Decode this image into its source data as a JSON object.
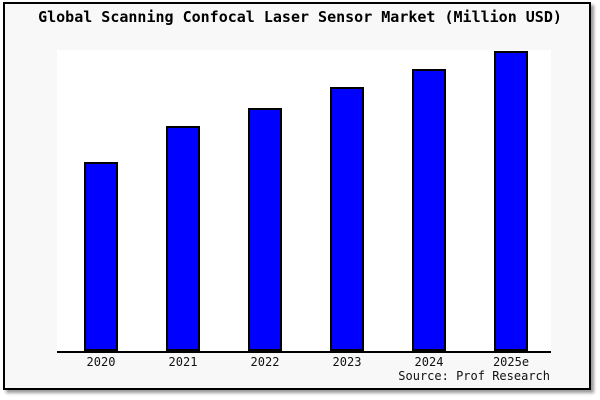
{
  "title": "Global Scanning Confocal Laser Sensor Market (Million USD)",
  "source": "Source: Prof Research",
  "colors": {
    "bar_fill": "#0000ff",
    "bar_border": "#000000",
    "canvas_background": "#f8f8f8",
    "plot_background": "#ffffff",
    "frame_border": "#000000",
    "text": "#000000"
  },
  "chart_data": {
    "type": "bar",
    "title": "Global Scanning Confocal Laser Sensor Market (Million USD)",
    "categories": [
      "2020",
      "2021",
      "2022",
      "2023",
      "2024",
      "2025e"
    ],
    "values": [
      63,
      75,
      81,
      88,
      94,
      100
    ],
    "values_unit": "relative height, max bar (2025e) = 100; y-axis has no ticks or labels",
    "xlabel": "",
    "ylabel": "",
    "ylim": [
      0,
      100
    ],
    "grid": false,
    "legend": false,
    "source": "Source: Prof Research"
  }
}
